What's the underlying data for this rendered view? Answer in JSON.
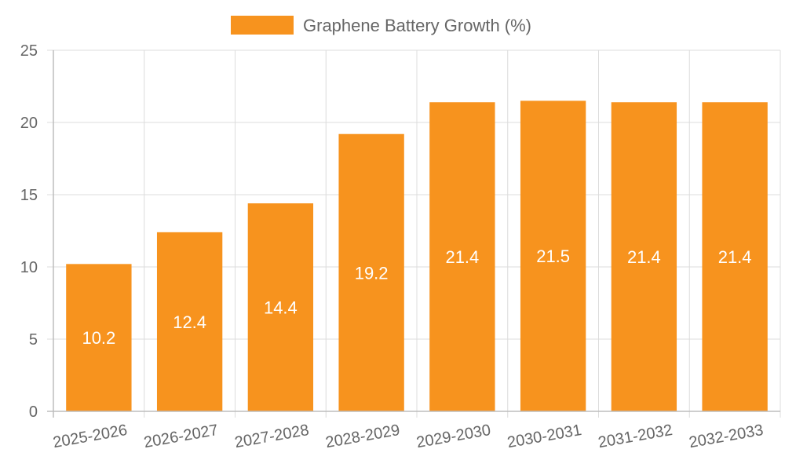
{
  "chart_data": {
    "type": "bar",
    "title": "",
    "xlabel": "",
    "ylabel": "",
    "categories": [
      "2025-2026",
      "2026-2027",
      "2027-2028",
      "2028-2029",
      "2029-2030",
      "2030-2031",
      "2031-2032",
      "2032-2033"
    ],
    "series": [
      {
        "name": "Graphene Battery Growth (%)",
        "color": "#f7931e",
        "values": [
          10.2,
          12.4,
          14.4,
          19.2,
          21.4,
          21.5,
          21.4,
          21.4
        ]
      }
    ],
    "ylim": [
      0,
      25
    ],
    "yticks": [
      "0",
      "5",
      "10",
      "15",
      "20",
      "25"
    ],
    "grid": true,
    "legend_position": "top-center",
    "data_labels": true
  }
}
